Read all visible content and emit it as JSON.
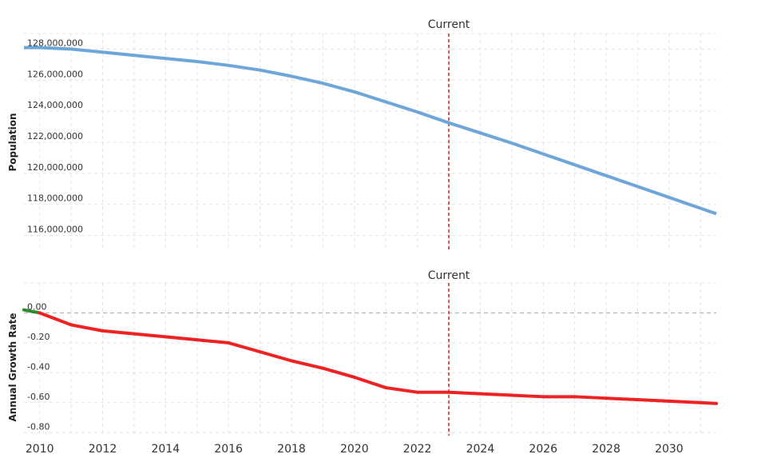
{
  "chart_data": [
    {
      "type": "line",
      "ylabel": "Population",
      "ylim": [
        115000000,
        129000000
      ],
      "yticks": [
        116000000,
        118000000,
        120000000,
        122000000,
        124000000,
        126000000,
        128000000
      ],
      "ytick_labels": [
        "116,000,000",
        "118,000,000",
        "120,000,000",
        "122,000,000",
        "124,000,000",
        "126,000,000",
        "128,000,000"
      ],
      "xlim": [
        2009.5,
        2031.5
      ],
      "marker": {
        "label": "Current",
        "x": 2023,
        "color": "#cc2222"
      },
      "grid": true,
      "series": [
        {
          "color": "#6ea6da",
          "x": [
            2009.5,
            2010,
            2011,
            2012,
            2013,
            2014,
            2015,
            2016,
            2017,
            2018,
            2019,
            2020,
            2021,
            2022,
            2023,
            2024,
            2025,
            2026,
            2027,
            2028,
            2029,
            2030,
            2031,
            2031.5
          ],
          "y": [
            128100000,
            128100000,
            128000000,
            127800000,
            127600000,
            127400000,
            127200000,
            126950000,
            126650000,
            126250000,
            125800000,
            125250000,
            124600000,
            123950000,
            123250000,
            122600000,
            121950000,
            121250000,
            120550000,
            119850000,
            119150000,
            118450000,
            117750000,
            117400000
          ]
        }
      ]
    },
    {
      "type": "line",
      "ylabel": "Annual Growth Rate",
      "ylim": [
        -0.82,
        0.2
      ],
      "yticks": [
        0.0,
        -0.2,
        -0.4,
        -0.6,
        -0.8
      ],
      "ytick_labels": [
        "0.00",
        "-0.20",
        "-0.40",
        "-0.60",
        "-0.80"
      ],
      "xlim": [
        2009.5,
        2031.5
      ],
      "xticks": [
        2010,
        2012,
        2014,
        2016,
        2018,
        2020,
        2022,
        2024,
        2026,
        2028,
        2030
      ],
      "xtick_labels": [
        "2010",
        "2012",
        "2014",
        "2016",
        "2018",
        "2020",
        "2022",
        "2024",
        "2026",
        "2028",
        "2030"
      ],
      "marker": {
        "label": "Current",
        "x": 2023,
        "color": "#cc2222"
      },
      "grid": true,
      "series": [
        {
          "color": "#ee2222",
          "positive_color": "#2e8b2e",
          "x": [
            2009.5,
            2010,
            2011,
            2012,
            2013,
            2014,
            2015,
            2016,
            2017,
            2018,
            2019,
            2020,
            2021,
            2022,
            2023,
            2024,
            2025,
            2026,
            2027,
            2028,
            2029,
            2030,
            2031,
            2031.5
          ],
          "y": [
            0.02,
            0.0,
            -0.08,
            -0.12,
            -0.14,
            -0.16,
            -0.18,
            -0.2,
            -0.26,
            -0.32,
            -0.37,
            -0.43,
            -0.5,
            -0.53,
            -0.53,
            -0.54,
            -0.55,
            -0.56,
            -0.56,
            -0.57,
            -0.58,
            -0.59,
            -0.6,
            -0.605
          ]
        }
      ]
    }
  ]
}
